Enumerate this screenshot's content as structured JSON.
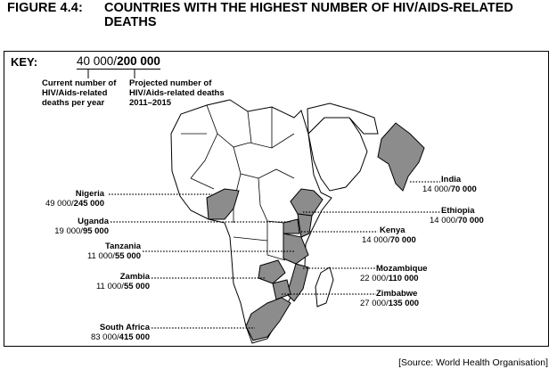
{
  "figure": {
    "number": "FIGURE 4.4:",
    "title": "COUNTRIES WITH THE HIGHEST NUMBER OF HIV/AIDS-RELATED DEATHS"
  },
  "key": {
    "label": "KEY:",
    "current_example": "40 000",
    "projected_example": "200 000",
    "current_description": "Current number of HIV/Aids-related deaths per year",
    "projected_description": "Projected number of HIV/Aids-related deaths 2011–2015"
  },
  "countries": [
    {
      "name": "Nigeria",
      "current": "49 000",
      "projected": "245 000"
    },
    {
      "name": "Uganda",
      "current": "19 000",
      "projected": "95 000"
    },
    {
      "name": "Tanzania",
      "current": "11 000",
      "projected": "55 000"
    },
    {
      "name": "Zambia",
      "current": "11 000",
      "projected": "55 000"
    },
    {
      "name": "South Africa",
      "current": "83 000",
      "projected": "415 000"
    },
    {
      "name": "India",
      "current": "14 000",
      "projected": "70 000"
    },
    {
      "name": "Ethiopia",
      "current": "14 000",
      "projected": "70 000"
    },
    {
      "name": "Kenya",
      "current": "14 000",
      "projected": "70 000"
    },
    {
      "name": "Mozambique",
      "current": "22 000",
      "projected": "110 000"
    },
    {
      "name": "Zimbabwe",
      "current": "27 000",
      "projected": "135 000"
    }
  ],
  "source": "[Source:  World Health Organisation]",
  "colors": {
    "highlight": "#8c8c8c",
    "outline": "#000000"
  }
}
